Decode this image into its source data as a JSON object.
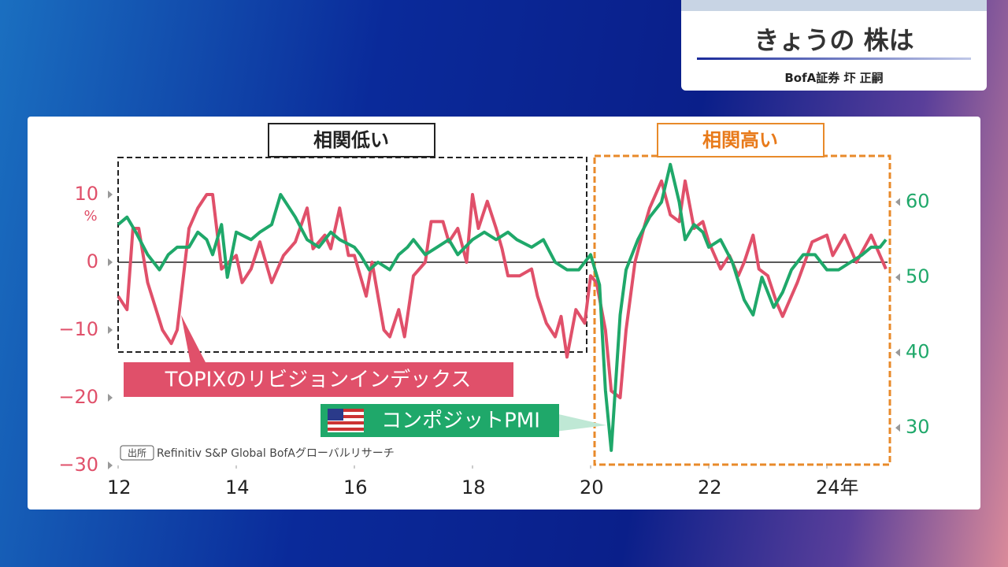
{
  "header": {
    "title": "きょうの 株は",
    "subtitle": "BofA証券 圷 正嗣"
  },
  "chart_data": {
    "type": "line",
    "left_axis_unit": "%",
    "boxes": [
      "相関低い",
      "相関高い"
    ],
    "source_tag": "出所",
    "source": "Refinitiv S&P Global BofAグローバルリサーチ",
    "xlim": [
      2012,
      2025
    ],
    "xticks": [
      {
        "value": 2012,
        "label": "12"
      },
      {
        "value": 2014,
        "label": "14"
      },
      {
        "value": 2016,
        "label": "16"
      },
      {
        "value": 2018,
        "label": "18"
      },
      {
        "value": 2020,
        "label": "20"
      },
      {
        "value": 2022,
        "label": "22"
      },
      {
        "value": 2024,
        "label": "24年"
      }
    ],
    "ylim": [
      -30,
      15
    ],
    "yticks": [
      {
        "value": -30,
        "label": "−30"
      },
      {
        "value": -20,
        "label": "−20"
      },
      {
        "value": -10,
        "label": "−10"
      },
      0,
      10
    ],
    "y2lim": [
      25,
      65.5
    ],
    "y2ticks": [
      30,
      40,
      50,
      60
    ],
    "series": [
      {
        "name": "TOPIXのリビジョンインデックス",
        "color": "#e0506a",
        "x": [
          2012.0,
          2012.15,
          2012.25,
          2012.35,
          2012.5,
          2012.75,
          2012.9,
          2013.0,
          2013.2,
          2013.35,
          2013.5,
          2013.6,
          2013.75,
          2014.0,
          2014.1,
          2014.25,
          2014.4,
          2014.5,
          2014.6,
          2014.8,
          2015.0,
          2015.2,
          2015.3,
          2015.5,
          2015.6,
          2015.75,
          2015.9,
          2016.0,
          2016.2,
          2016.3,
          2016.5,
          2016.6,
          2016.75,
          2016.85,
          2017.0,
          2017.2,
          2017.3,
          2017.5,
          2017.6,
          2017.75,
          2017.9,
          2018.0,
          2018.1,
          2018.25,
          2018.4,
          2018.5,
          2018.6,
          2018.8,
          2019.0,
          2019.1,
          2019.25,
          2019.4,
          2019.5,
          2019.6,
          2019.75,
          2019.9,
          2020.0,
          2020.1,
          2020.25,
          2020.35,
          2020.5,
          2020.6,
          2020.75,
          2020.9,
          2021.0,
          2021.2,
          2021.35,
          2021.5,
          2021.6,
          2021.75,
          2021.9,
          2022.0,
          2022.2,
          2022.35,
          2022.5,
          2022.6,
          2022.75,
          2022.85,
          2023.0,
          2023.15,
          2023.25,
          2023.5,
          2023.75,
          2024.0,
          2024.1,
          2024.3,
          2024.5,
          2024.75,
          2024.9,
          2025.0
        ],
        "values": [
          -5,
          -7,
          5,
          5,
          -3,
          -10,
          -12,
          -10,
          5,
          8,
          10,
          10,
          -1,
          1,
          -3,
          -1,
          3,
          0,
          -3,
          1,
          3,
          8,
          2,
          4,
          2,
          8,
          1,
          1,
          -5,
          0,
          -10,
          -11,
          -7,
          -11,
          -2,
          0,
          6,
          6,
          3,
          5,
          0,
          10,
          5,
          9,
          5,
          2,
          -2,
          -2,
          -1,
          -5,
          -9,
          -11,
          -8,
          -14,
          -7,
          -9,
          -2,
          -3,
          -10,
          -19,
          -20,
          -10,
          0,
          5,
          8,
          12,
          7,
          6,
          12,
          5,
          6,
          3,
          -1,
          1,
          -2,
          0,
          4,
          -1,
          -2,
          -6,
          -8,
          -3,
          3,
          4,
          1,
          4,
          0,
          4,
          1,
          -1
        ]
      },
      {
        "name": "コンポジットPMI",
        "color": "#1fa86a",
        "axis": "y2",
        "x": [
          2012.0,
          2012.15,
          2012.3,
          2012.5,
          2012.7,
          2012.85,
          2013.0,
          2013.2,
          2013.35,
          2013.5,
          2013.6,
          2013.75,
          2013.85,
          2014.0,
          2014.25,
          2014.4,
          2014.6,
          2014.75,
          2015.0,
          2015.2,
          2015.4,
          2015.6,
          2015.75,
          2016.0,
          2016.1,
          2016.25,
          2016.4,
          2016.6,
          2016.75,
          2016.9,
          2017.0,
          2017.2,
          2017.4,
          2017.6,
          2017.75,
          2018.0,
          2018.2,
          2018.4,
          2018.6,
          2018.75,
          2019.0,
          2019.2,
          2019.4,
          2019.6,
          2019.8,
          2020.0,
          2020.15,
          2020.25,
          2020.35,
          2020.5,
          2020.6,
          2020.8,
          2021.0,
          2021.2,
          2021.35,
          2021.5,
          2021.6,
          2021.75,
          2021.9,
          2022.0,
          2022.2,
          2022.4,
          2022.6,
          2022.75,
          2022.9,
          2023.1,
          2023.25,
          2023.4,
          2023.6,
          2023.8,
          2024.0,
          2024.2,
          2024.4,
          2024.6,
          2024.75,
          2024.9,
          2025.0
        ],
        "values": [
          57,
          58,
          56,
          53,
          51,
          53,
          54,
          54,
          56,
          55,
          53,
          57,
          50,
          56,
          55,
          56,
          57,
          61,
          58,
          55,
          54,
          56,
          55,
          54,
          53,
          51,
          52,
          51,
          53,
          54,
          55,
          53,
          54,
          55,
          53,
          55,
          56,
          55,
          56,
          55,
          54,
          55,
          52,
          51,
          51,
          53,
          49,
          35,
          27,
          45,
          51,
          55,
          58,
          60,
          65,
          60,
          55,
          57,
          56,
          54,
          55,
          52,
          47,
          45,
          50,
          46,
          48,
          51,
          53,
          53,
          51,
          51,
          52,
          53,
          54,
          54,
          55
        ]
      }
    ]
  }
}
